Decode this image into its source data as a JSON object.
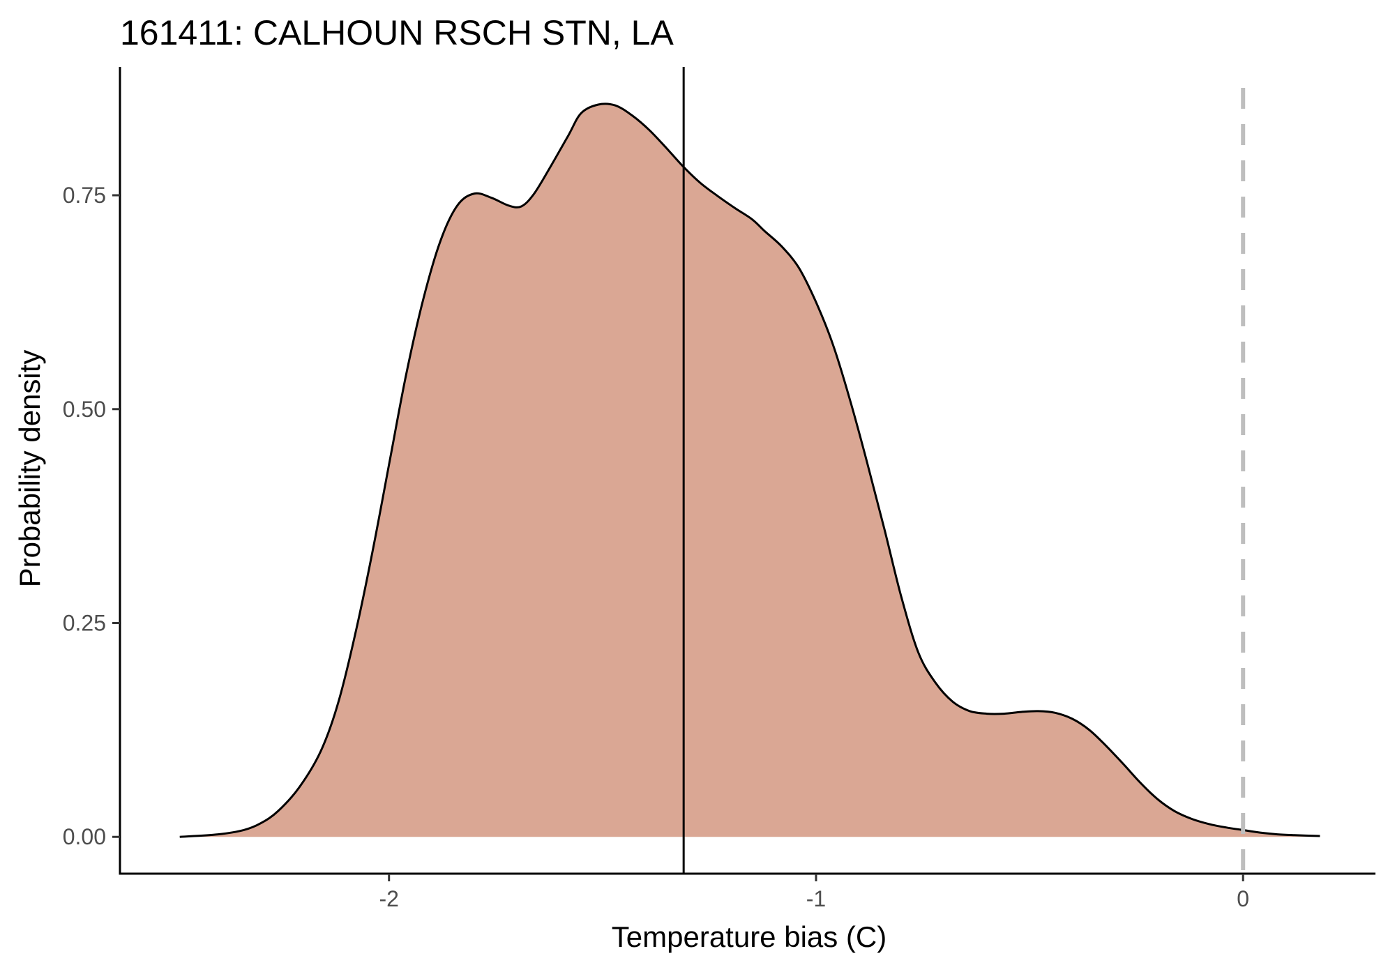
{
  "chart_data": {
    "type": "area",
    "title": "161411: CALHOUN RSCH STN, LA",
    "xlabel": "Temperature bias (C)",
    "ylabel": "Probability density",
    "xlim": [
      -2.63,
      0.31
    ],
    "ylim": [
      -0.043,
      0.9
    ],
    "x_ticks": [
      -2,
      -1,
      0
    ],
    "x_tick_labels": [
      "-2",
      "-1",
      "0"
    ],
    "y_ticks": [
      0,
      0.25,
      0.5,
      0.75
    ],
    "y_tick_labels": [
      "0.00",
      "0.25",
      "0.50",
      "0.75"
    ],
    "grid": false,
    "legend": "none",
    "fill_color": "#daa794",
    "line_color": "#000000",
    "reference_lines": [
      {
        "x": -1.31,
        "style": "solid",
        "color": "#000000"
      },
      {
        "x": 0,
        "style": "dashed",
        "color": "#bebebe"
      }
    ],
    "series": [
      {
        "x": [
          -2.49,
          -2.4,
          -2.34,
          -2.3,
          -2.26,
          -2.21,
          -2.16,
          -2.12,
          -2.08,
          -2.04,
          -2.0,
          -1.96,
          -1.92,
          -1.88,
          -1.84,
          -1.8,
          -1.76,
          -1.72,
          -1.69,
          -1.66,
          -1.62,
          -1.58,
          -1.55,
          -1.51,
          -1.47,
          -1.43,
          -1.39,
          -1.35,
          -1.31,
          -1.27,
          -1.23,
          -1.19,
          -1.15,
          -1.12,
          -1.08,
          -1.04,
          -1.0,
          -0.96,
          -0.92,
          -0.88,
          -0.84,
          -0.8,
          -0.76,
          -0.72,
          -0.68,
          -0.64,
          -0.6,
          -0.56,
          -0.52,
          -0.48,
          -0.44,
          -0.4,
          -0.36,
          -0.32,
          -0.28,
          -0.24,
          -0.2,
          -0.16,
          -0.12,
          -0.08,
          -0.04,
          0.0,
          0.04,
          0.08,
          0.12,
          0.18
        ],
        "y": [
          0.0,
          0.003,
          0.008,
          0.016,
          0.03,
          0.058,
          0.1,
          0.155,
          0.235,
          0.33,
          0.435,
          0.54,
          0.628,
          0.696,
          0.738,
          0.752,
          0.747,
          0.738,
          0.737,
          0.752,
          0.785,
          0.82,
          0.846,
          0.856,
          0.855,
          0.843,
          0.826,
          0.805,
          0.783,
          0.764,
          0.749,
          0.735,
          0.722,
          0.708,
          0.69,
          0.665,
          0.625,
          0.575,
          0.51,
          0.437,
          0.36,
          0.28,
          0.215,
          0.18,
          0.158,
          0.147,
          0.144,
          0.144,
          0.146,
          0.147,
          0.145,
          0.138,
          0.125,
          0.106,
          0.085,
          0.063,
          0.044,
          0.03,
          0.021,
          0.015,
          0.011,
          0.008,
          0.005,
          0.003,
          0.002,
          0.001
        ]
      }
    ]
  }
}
